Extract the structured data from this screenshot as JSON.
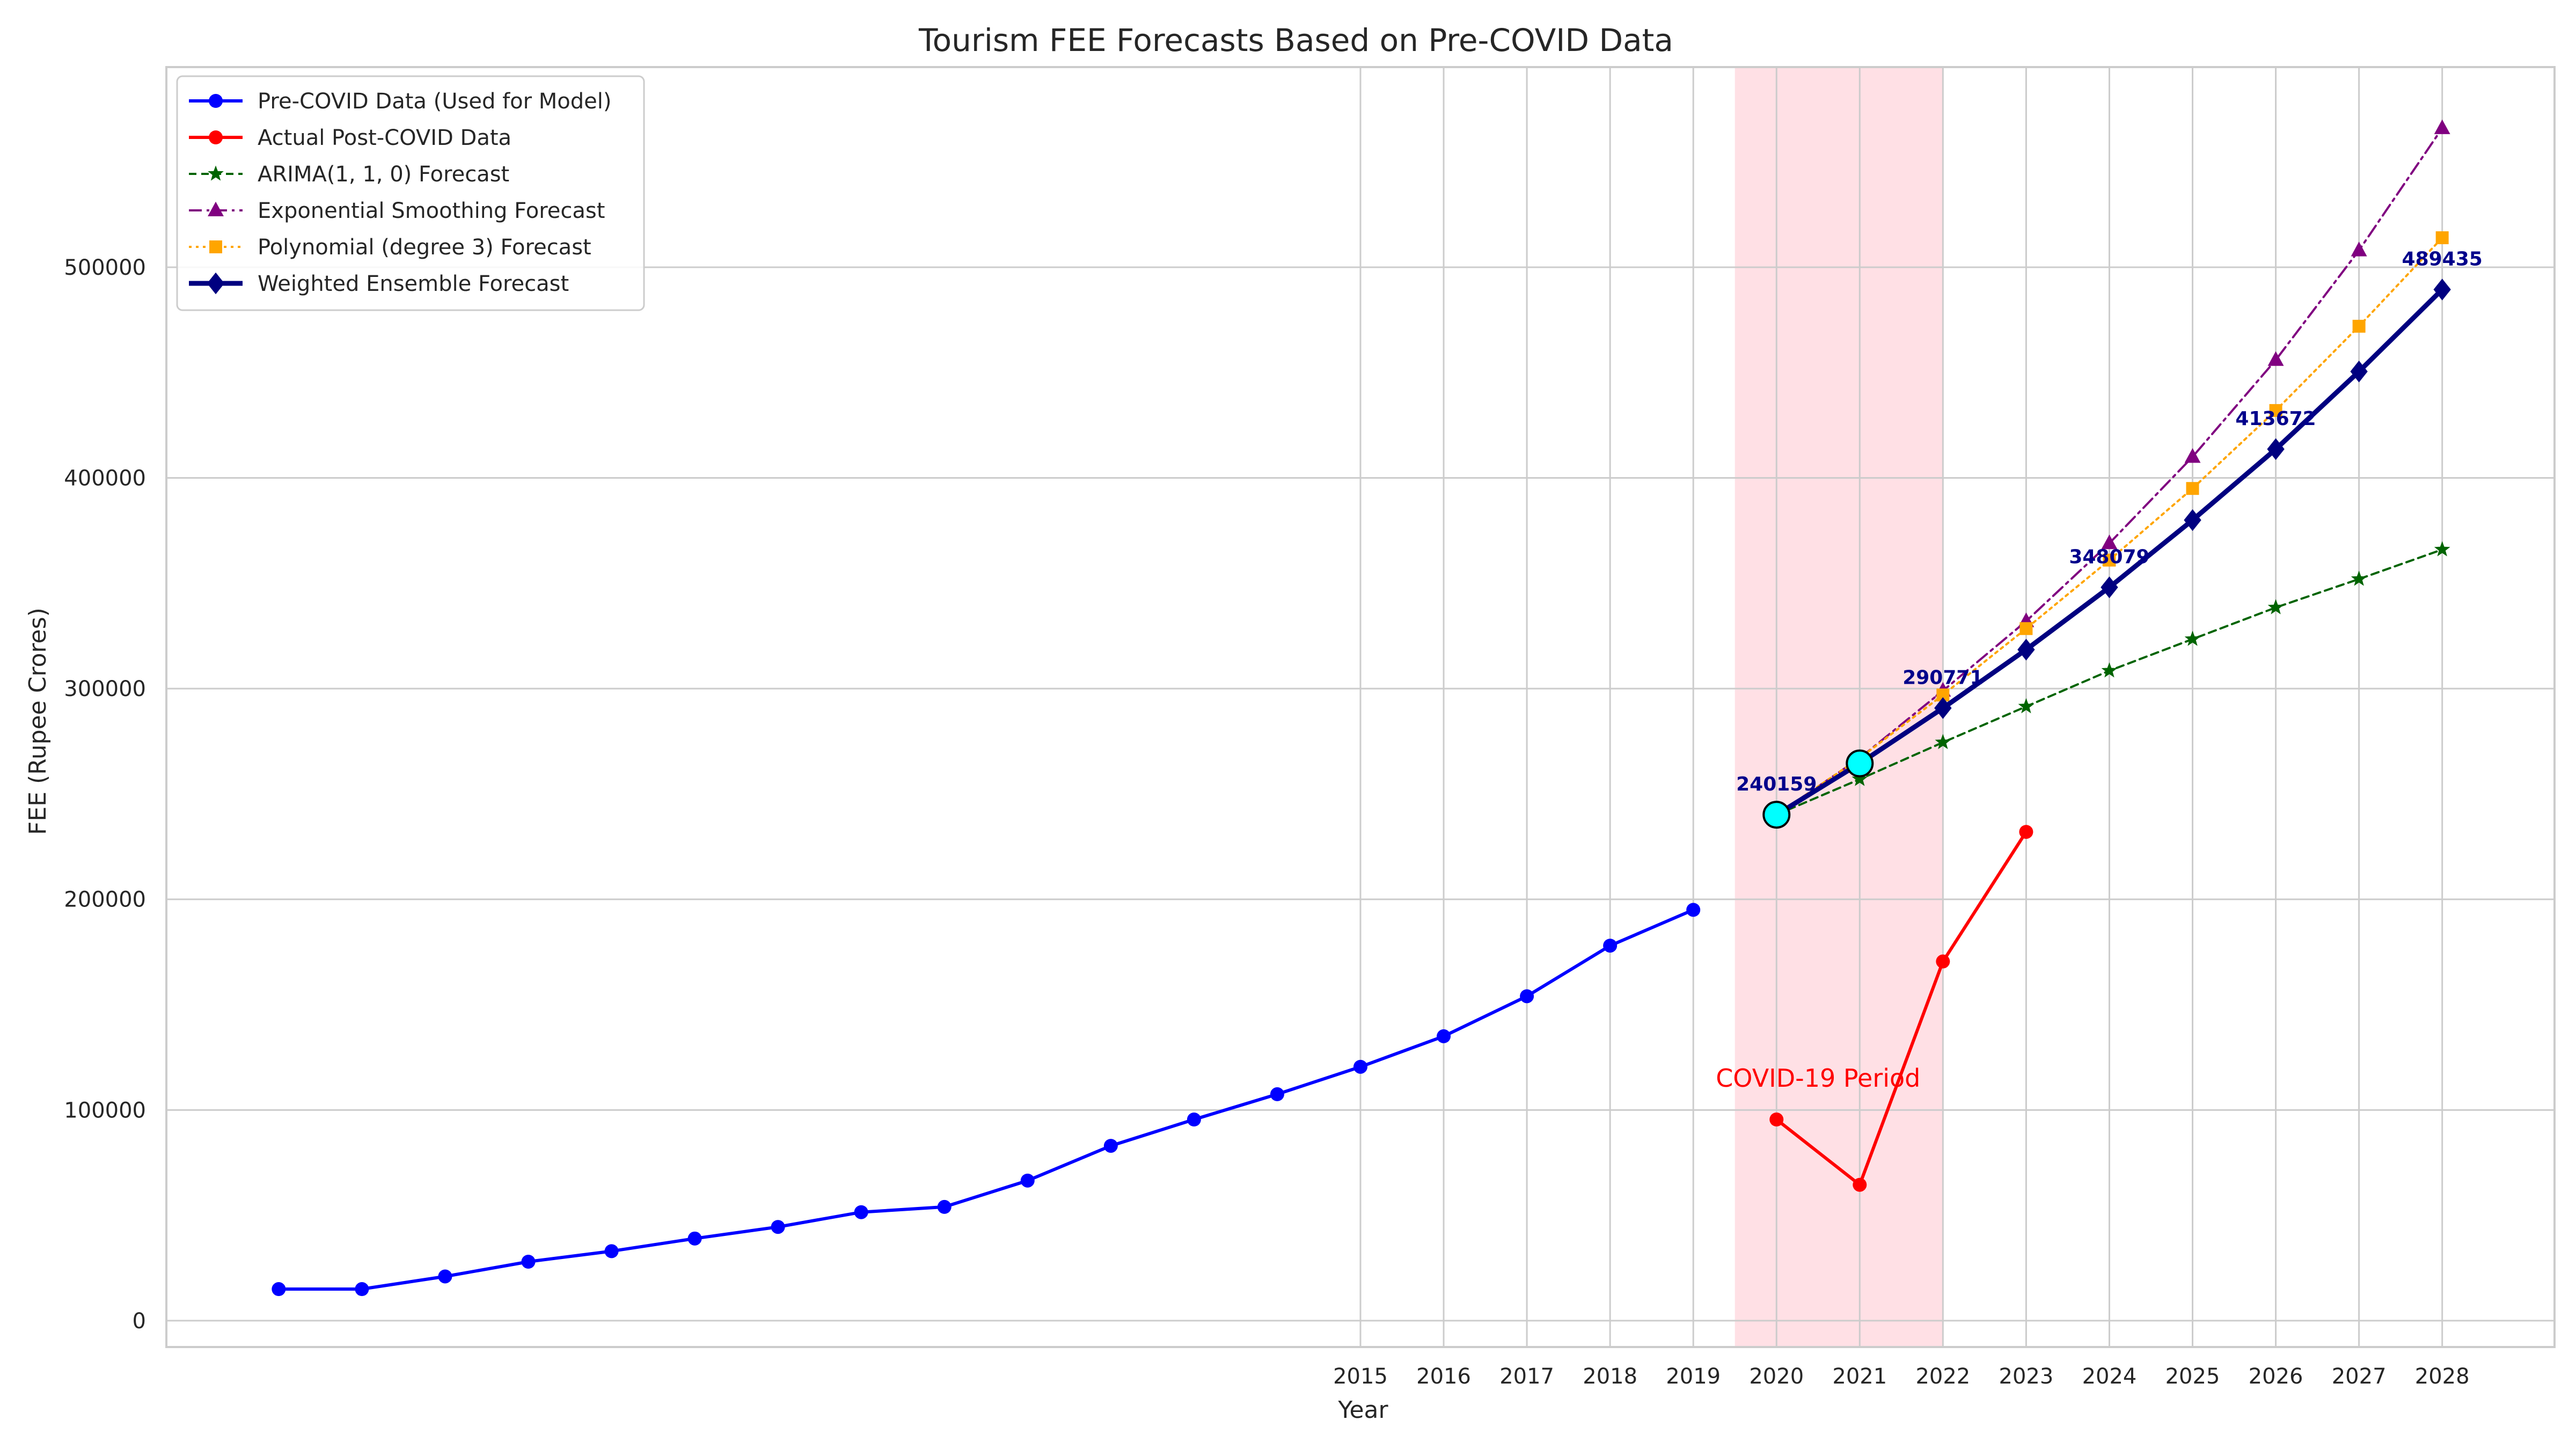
{
  "chart_data": {
    "type": "line",
    "title": "Tourism FEE Forecasts Based on Pre-COVID Data",
    "xlabel": "Year",
    "ylabel": "FEE (Rupee Crores)",
    "xlim": [
      2000.65,
      2029.35
    ],
    "ylim": [
      -12500,
      595000
    ],
    "x_ticks": [
      2015,
      2016,
      2017,
      2018,
      2019,
      2020,
      2021,
      2022,
      2023,
      2024,
      2025,
      2026,
      2027,
      2028
    ],
    "y_ticks": [
      0,
      100000,
      200000,
      300000,
      400000,
      500000
    ],
    "grid": true,
    "legend_position": "top-left",
    "shaded_region": {
      "x_start": 2019.5,
      "x_end": 2022,
      "label": "COVID-19 Period",
      "label_x": 2020.5,
      "label_y": 111000,
      "color": "#ffb6c1"
    },
    "series": [
      {
        "name": "Pre-COVID Data (Used for Model)",
        "color": "#0000ff",
        "dash": "",
        "marker": "circle",
        "width": 6,
        "x": [
          2002,
          2003,
          2004,
          2005,
          2006,
          2007,
          2008,
          2009,
          2010,
          2011,
          2012,
          2013,
          2014,
          2015,
          2016,
          2017,
          2018,
          2019
        ],
        "values": [
          15000,
          15000,
          21000,
          28000,
          33000,
          39000,
          44500,
          51500,
          54000,
          66500,
          83000,
          95500,
          107500,
          120500,
          135000,
          154000,
          178000,
          195000
        ]
      },
      {
        "name": "Actual Post-COVID Data",
        "color": "#ff0000",
        "dash": "",
        "marker": "circle",
        "width": 6,
        "x": [
          2020,
          2021,
          2022,
          2023
        ],
        "values": [
          95500,
          64500,
          170500,
          232000
        ]
      },
      {
        "name": "ARIMA(1, 1, 0) Forecast",
        "color": "#006400",
        "dash": "14,9",
        "marker": "star",
        "width": 4,
        "x": [
          2020,
          2021,
          2022,
          2023,
          2024,
          2025,
          2026,
          2027,
          2028
        ],
        "values": [
          240159,
          257000,
          274500,
          291500,
          308500,
          323500,
          338500,
          352000,
          366000
        ]
      },
      {
        "name": "Exponential Smoothing Forecast",
        "color": "#800080",
        "dash": "24,9,5,9",
        "marker": "triangle",
        "width": 4,
        "x": [
          2020,
          2021,
          2022,
          2023,
          2024,
          2025,
          2026,
          2027,
          2028
        ],
        "values": [
          240159,
          267000,
          299000,
          332000,
          369000,
          410000,
          456000,
          508000,
          566000
        ]
      },
      {
        "name": "Polynomial (degree 3) Forecast",
        "color": "#ffa500",
        "dash": "5,8",
        "marker": "square",
        "width": 4,
        "x": [
          2020,
          2021,
          2022,
          2023,
          2024,
          2025,
          2026,
          2027,
          2028
        ],
        "values": [
          240159,
          267000,
          297000,
          328500,
          361000,
          395000,
          432000,
          472000,
          514000
        ]
      },
      {
        "name": "Weighted Ensemble Forecast",
        "color": "#000080",
        "dash": "",
        "marker": "diamond",
        "width": 9,
        "x": [
          2020,
          2021,
          2022,
          2023,
          2024,
          2025,
          2026,
          2027,
          2028
        ],
        "values": [
          240159,
          264500,
          290771,
          318500,
          348079,
          380000,
          413672,
          450500,
          489435
        ]
      }
    ],
    "highlight_points": [
      {
        "x": 2020,
        "y": 240159,
        "color": "#00ffff"
      },
      {
        "x": 2021,
        "y": 264500,
        "color": "#00ffff"
      }
    ],
    "annotations": [
      {
        "x": 2020,
        "y": 240159,
        "text": "240159"
      },
      {
        "x": 2022,
        "y": 290771,
        "text": "290771"
      },
      {
        "x": 2024,
        "y": 348079,
        "text": "348079"
      },
      {
        "x": 2026,
        "y": 413672,
        "text": "413672"
      },
      {
        "x": 2028,
        "y": 489435,
        "text": "489435"
      }
    ]
  }
}
